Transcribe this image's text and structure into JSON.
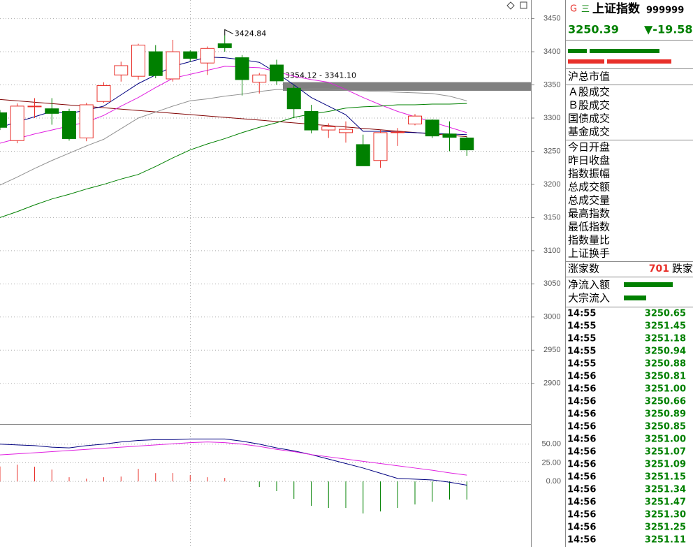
{
  "chart_data": [
    {
      "type": "candlestick",
      "ylim": [
        2846,
        3478
      ],
      "yticks": [
        2900,
        2950,
        3000,
        3050,
        3100,
        3150,
        3200,
        3250,
        3300,
        3350,
        3400,
        3450
      ],
      "grid": true,
      "up_color": "#e8302a",
      "down_color": "#008000",
      "open": [
        3308,
        3266,
        3317,
        3314,
        3310,
        3270,
        3325,
        3365,
        3363,
        3400,
        3359,
        3400,
        3383,
        3412,
        3391,
        3354,
        3380,
        3345,
        3310,
        3282,
        3278,
        3260,
        3236,
        3278,
        3291,
        3297,
        3276,
        3270
      ],
      "high": [
        3312,
        3322,
        3330,
        3330,
        3314,
        3323,
        3354,
        3385,
        3412,
        3410,
        3418,
        3402,
        3408,
        3424.84,
        3395,
        3368,
        3388,
        3350,
        3320,
        3292,
        3295,
        3275,
        3282,
        3285,
        3306,
        3298,
        3295,
        3272
      ],
      "low": [
        3282,
        3262,
        3300,
        3290,
        3266,
        3265,
        3323,
        3355,
        3358,
        3360,
        3355,
        3385,
        3365,
        3400,
        3334,
        3337,
        3350,
        3300,
        3277,
        3270,
        3263,
        3228,
        3225,
        3258,
        3289,
        3270,
        3250,
        3243
      ],
      "close": [
        3286,
        3318,
        3318,
        3307,
        3269,
        3320,
        3349,
        3379,
        3410,
        3364,
        3400,
        3390,
        3405,
        3406,
        3358,
        3365,
        3356,
        3314,
        3282,
        3287,
        3283,
        3228,
        3278,
        3279,
        3303,
        3273,
        3271,
        3252
      ],
      "series": [
        {
          "color": "#000080",
          "values": [
            3286,
            3294,
            3302,
            3310,
            3307,
            3312,
            3318,
            3335,
            3352,
            3365,
            3378,
            3385,
            3392,
            3391,
            3388,
            3384,
            3368,
            3350,
            3331,
            3318,
            3305,
            3280,
            3280,
            3279,
            3278,
            3277,
            3276,
            3275
          ]
        },
        {
          "color": "#e020e0",
          "values": [
            3262,
            3269,
            3276,
            3282,
            3288,
            3294,
            3304,
            3318,
            3331,
            3346,
            3360,
            3366,
            3372,
            3378,
            3377,
            3376,
            3370,
            3363,
            3358,
            3354,
            3343,
            3331,
            3320,
            3310,
            3302,
            3294,
            3286,
            3278
          ]
        },
        {
          "color": "#909090",
          "values": [
            3199,
            3211,
            3224,
            3236,
            3247,
            3258,
            3268,
            3284,
            3300,
            3309,
            3318,
            3326,
            3329,
            3333,
            3336,
            3340,
            3343,
            3343,
            3344,
            3344,
            3342,
            3341,
            3340,
            3339,
            3338,
            3337,
            3333,
            3326
          ]
        },
        {
          "color": "#008000",
          "values": [
            3150,
            3159,
            3169,
            3178,
            3185,
            3193,
            3200,
            3208,
            3215,
            3227,
            3240,
            3252,
            3261,
            3269,
            3278,
            3286,
            3293,
            3301,
            3306,
            3310,
            3315,
            3317,
            3318,
            3320,
            3320,
            3321,
            3321,
            3322
          ]
        }
      ],
      "trendline": {
        "color": "#800000",
        "values": [
          3328,
          3272
        ]
      },
      "zone": {
        "high": 3354.12,
        "low": 3341.1,
        "label": "3354.12 - 3341.10",
        "color": "#808080"
      }
    },
    {
      "type": "macd",
      "ylim": [
        -88,
        77
      ],
      "yticks": [
        {
          "value": 0,
          "label": "0.00"
        },
        {
          "value": 25,
          "label": "25.00"
        },
        {
          "value": 50,
          "label": "50.00"
        }
      ],
      "up_color": "#e8302a",
      "down_color": "#008000",
      "bars": [
        20,
        22.5,
        19.7,
        15.9,
        5.6,
        3.7,
        5.6,
        6.5,
        16.9,
        11.2,
        11.2,
        8.4,
        5.6,
        4.7,
        0.5,
        -7.5,
        -13,
        -23.4,
        -32.8,
        -35.6,
        -35.6,
        -43,
        -40.3,
        -35.6,
        -30.9,
        -27.2,
        -24.4,
        -24.4
      ],
      "series": [
        {
          "color": "#000080",
          "values": [
            50,
            49,
            48,
            46,
            45,
            48,
            50,
            53,
            55,
            56,
            56,
            57,
            57,
            57,
            54,
            50,
            45,
            41,
            36,
            30,
            24,
            18,
            11,
            4,
            3,
            2,
            -1,
            -5
          ]
        },
        {
          "color": "#e020e0",
          "values": [
            35.6,
            37,
            38.5,
            40,
            41.5,
            43,
            44.5,
            46,
            47.5,
            49,
            50.5,
            52,
            53,
            52,
            50,
            47,
            43,
            40,
            36,
            33,
            30,
            27,
            24,
            21,
            18,
            15,
            11.5,
            8.4
          ]
        }
      ]
    }
  ],
  "quote_panel": {
    "icon_g": "G",
    "icon_menu": "三",
    "name": "上证指数",
    "code": "999999",
    "price": "3250.39",
    "change": "▼-19.58",
    "rows1": [
      "沪总市值"
    ],
    "rows2": [
      "Ａ股成交",
      "Ｂ股成交",
      "国债成交",
      "基金成交"
    ],
    "rows3": [
      "今日开盘",
      "昨日收盘",
      "指数振幅",
      "总成交额",
      "总成交量",
      "最高指数",
      "最低指数",
      "指数量比",
      "上证换手"
    ],
    "up_label": "涨家数",
    "up_count": "701",
    "down_label": "跌家",
    "flow_labels": [
      "净流入额",
      "大宗流入"
    ],
    "ticks": [
      [
        "14:55",
        "3250.65"
      ],
      [
        "14:55",
        "3251.45"
      ],
      [
        "14:55",
        "3251.18"
      ],
      [
        "14:55",
        "3250.94"
      ],
      [
        "14:55",
        "3250.88"
      ],
      [
        "14:56",
        "3250.81"
      ],
      [
        "14:56",
        "3251.00"
      ],
      [
        "14:56",
        "3250.66"
      ],
      [
        "14:56",
        "3250.89"
      ],
      [
        "14:56",
        "3250.85"
      ],
      [
        "14:56",
        "3251.00"
      ],
      [
        "14:56",
        "3251.07"
      ],
      [
        "14:56",
        "3251.09"
      ],
      [
        "14:56",
        "3251.15"
      ],
      [
        "14:56",
        "3251.34"
      ],
      [
        "14:56",
        "3251.47"
      ],
      [
        "14:56",
        "3251.30"
      ],
      [
        "14:56",
        "3251.25"
      ],
      [
        "14:56",
        "3251.11"
      ]
    ]
  }
}
